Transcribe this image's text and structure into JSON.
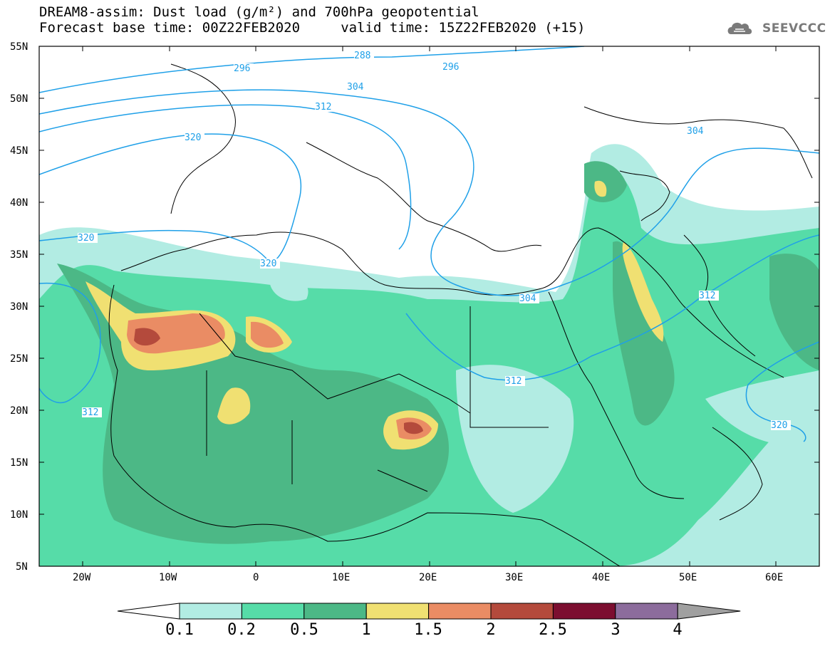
{
  "title": {
    "line1": "DREAM8-assim: Dust load (g/m²) and 700hPa geopotential",
    "line2": "Forecast base time: 00Z22FEB2020     valid time: 15Z22FEB2020 (+15)"
  },
  "logo": {
    "text": "SEEVCCC",
    "icon": "cloud-icon"
  },
  "map": {
    "lat_labels": [
      "55N",
      "50N",
      "45N",
      "40N",
      "35N",
      "30N",
      "25N",
      "20N",
      "15N",
      "10N",
      "5N"
    ],
    "lon_labels": [
      "20W",
      "10W",
      "0",
      "10E",
      "20E",
      "30E",
      "40E",
      "50E",
      "60E"
    ],
    "extent": {
      "lon": [
        -25,
        65
      ],
      "lat": [
        5,
        55
      ]
    },
    "geopotential_contours": [
      "288",
      "296",
      "296",
      "304",
      "312",
      "320",
      "320",
      "320",
      "312",
      "304",
      "304",
      "312",
      "312",
      "320"
    ]
  },
  "colorbar": {
    "labels": [
      "0.1",
      "0.2",
      "0.5",
      "1",
      "1.5",
      "2",
      "2.5",
      "3",
      "4"
    ],
    "colors": [
      "#ffffff",
      "#b2ece3",
      "#56dca8",
      "#4cb886",
      "#f0e072",
      "#ea8c64",
      "#b44a3c",
      "#7c0e30",
      "#8c6c9c",
      "#a0a0a0"
    ]
  }
}
